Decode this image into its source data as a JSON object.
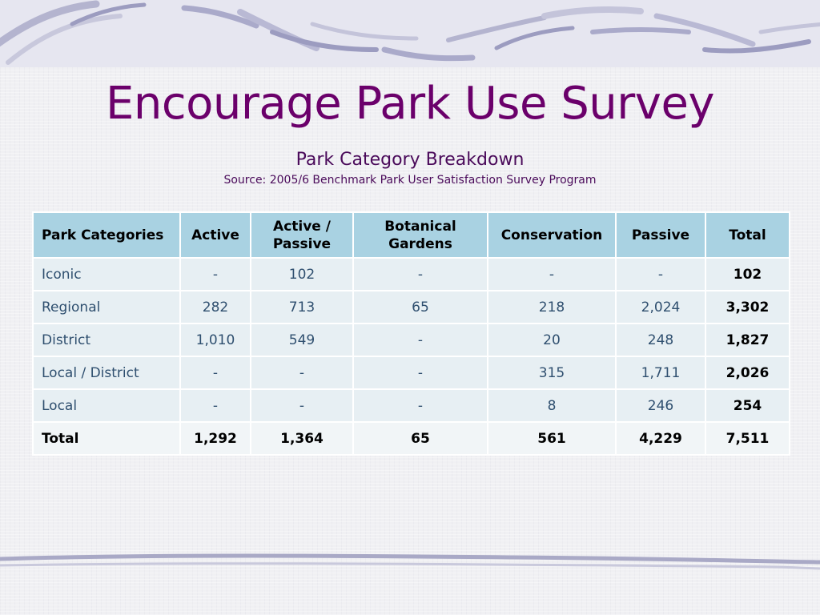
{
  "slide": {
    "title": "Encourage Park Use Survey",
    "subtitle": "Park Category Breakdown",
    "source": "Source: 2005/6 Benchmark Park User Satisfaction Survey Program"
  },
  "table": {
    "headers": [
      "Park Categories",
      "Active",
      "Active / Passive",
      "Botanical Gardens",
      "Conservation",
      "Passive",
      "Total"
    ],
    "rows": [
      [
        "Iconic",
        "-",
        "102",
        "-",
        "-",
        "-",
        "102"
      ],
      [
        "Regional",
        "282",
        "713",
        "65",
        "218",
        "2,024",
        "3,302"
      ],
      [
        "District",
        "1,010",
        "549",
        "-",
        "20",
        "248",
        "1,827"
      ],
      [
        "Local / District",
        "-",
        "-",
        "-",
        "315",
        "1,711",
        "2,026"
      ],
      [
        "Local",
        "-",
        "-",
        "-",
        "8",
        "246",
        "254"
      ]
    ],
    "total_row": [
      "Total",
      "1,292",
      "1,364",
      "65",
      "561",
      "4,229",
      "7,511"
    ]
  },
  "colors": {
    "title": "#6b006b",
    "header_bg": "#a9d2e2",
    "row_bg": "#e7eff3"
  }
}
